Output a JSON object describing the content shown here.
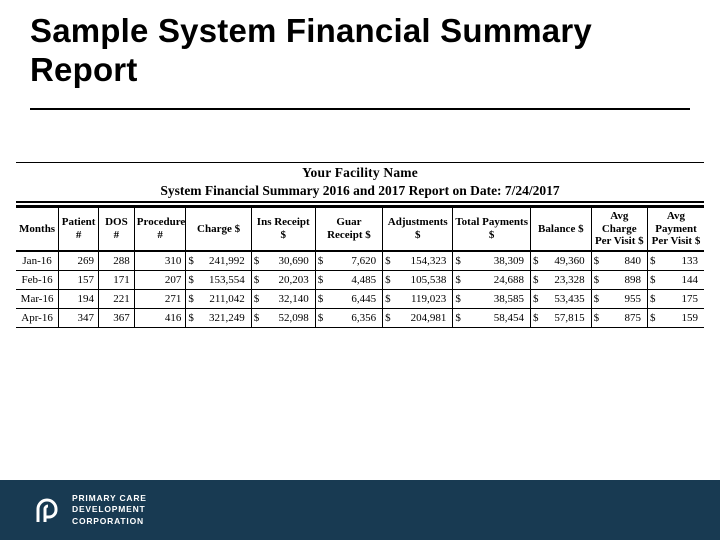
{
  "title": "Sample System Financial Summary Report",
  "report": {
    "facility_name": "Your Facility Name",
    "subtitle": "System Financial Summary 2016 and 2017 Report on Date: 7/24/2017",
    "columns": [
      {
        "key": "month",
        "label": "Months",
        "type": "text"
      },
      {
        "key": "patient",
        "label": "Patient #",
        "type": "num"
      },
      {
        "key": "dos",
        "label": "DOS #",
        "type": "num"
      },
      {
        "key": "proc",
        "label": "Procedure #",
        "type": "num"
      },
      {
        "key": "charge",
        "label": "Charge $",
        "type": "money"
      },
      {
        "key": "insrec",
        "label": "Ins Receipt $",
        "type": "money"
      },
      {
        "key": "guarrec",
        "label": "Guar Receipt $",
        "type": "money"
      },
      {
        "key": "adj",
        "label": "Adjustments $",
        "type": "money"
      },
      {
        "key": "totpay",
        "label": "Total Payments $",
        "type": "money"
      },
      {
        "key": "bal",
        "label": "Balance $",
        "type": "money"
      },
      {
        "key": "avgc",
        "label": "Avg Charge Per Visit $",
        "type": "money"
      },
      {
        "key": "avgp",
        "label": "Avg Payment Per Visit $",
        "type": "money"
      }
    ],
    "rows": [
      {
        "month": "Jan-16",
        "patient": "269",
        "dos": "288",
        "proc": "310",
        "charge": "241,992",
        "insrec": "30,690",
        "guarrec": "7,620",
        "adj": "154,323",
        "totpay": "38,309",
        "bal": "49,360",
        "avgc": "840",
        "avgp": "133"
      },
      {
        "month": "Feb-16",
        "patient": "157",
        "dos": "171",
        "proc": "207",
        "charge": "153,554",
        "insrec": "20,203",
        "guarrec": "4,485",
        "adj": "105,538",
        "totpay": "24,688",
        "bal": "23,328",
        "avgc": "898",
        "avgp": "144"
      },
      {
        "month": "Mar-16",
        "patient": "194",
        "dos": "221",
        "proc": "271",
        "charge": "211,042",
        "insrec": "32,140",
        "guarrec": "6,445",
        "adj": "119,023",
        "totpay": "38,585",
        "bal": "53,435",
        "avgc": "955",
        "avgp": "175"
      },
      {
        "month": "Apr-16",
        "patient": "347",
        "dos": "367",
        "proc": "416",
        "charge": "321,249",
        "insrec": "52,098",
        "guarrec": "6,356",
        "adj": "204,981",
        "totpay": "58,454",
        "bal": "57,815",
        "avgc": "875",
        "avgp": "159"
      }
    ],
    "styling": {
      "font_family": "Times New Roman",
      "header_fontsize_pt": 11,
      "body_fontsize_pt": 11,
      "border_color": "#000000",
      "background_color": "#ffffff",
      "text_color": "#000000"
    }
  },
  "footer": {
    "background_color": "#183a52",
    "text_color": "#ffffff",
    "line1": "PRIMARY CARE",
    "line2": "DEVELOPMENT",
    "line3": "CORPORATION"
  }
}
